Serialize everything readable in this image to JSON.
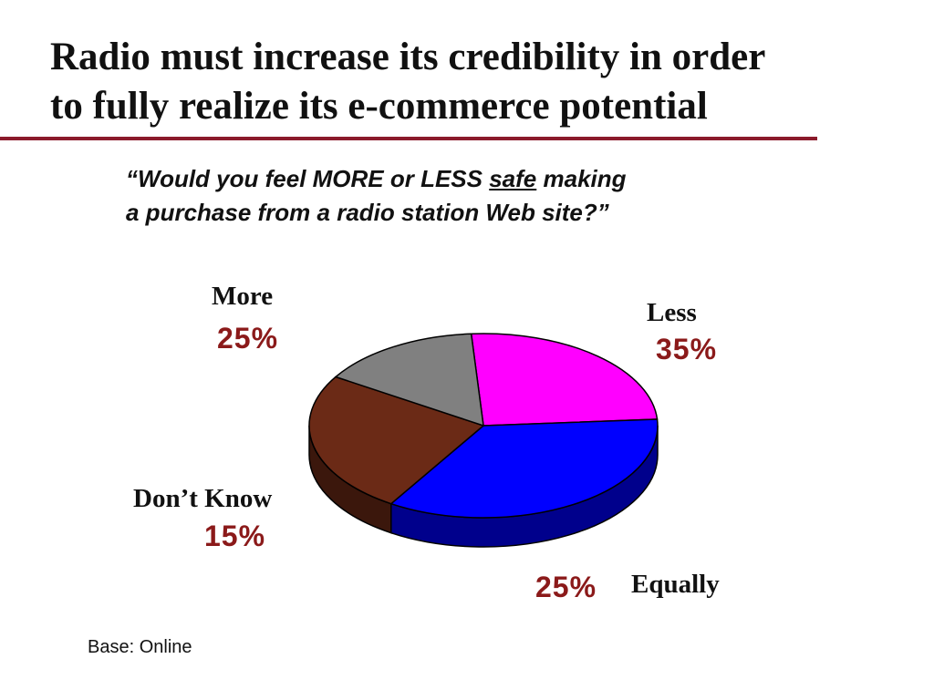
{
  "slide": {
    "title_line1": "Radio must increase its credibility in order",
    "title_line2": "to fully realize its e-commerce potential",
    "question_part1": "“Would you feel MORE or LESS ",
    "question_emphasis": "safe",
    "question_part2": " making",
    "question_line2": "a purchase from a radio station Web site?”",
    "base_note": "Base: Online"
  },
  "chart_data": {
    "type": "pie",
    "title": "",
    "style": "3d-tilted",
    "slices": [
      {
        "label": "More",
        "value": 25,
        "value_label": "25%",
        "color": "#ff00ff"
      },
      {
        "label": "Less",
        "value": 35,
        "value_label": "35%",
        "color": "#0000ff"
      },
      {
        "label": "Equally",
        "value": 25,
        "value_label": "25%",
        "color": "#6b2a16"
      },
      {
        "label": "Don’t Know",
        "value": 15,
        "value_label": "15%",
        "color": "#808080"
      }
    ],
    "label_color": "#111111",
    "value_color": "#8b1a1a",
    "legend": "none"
  }
}
